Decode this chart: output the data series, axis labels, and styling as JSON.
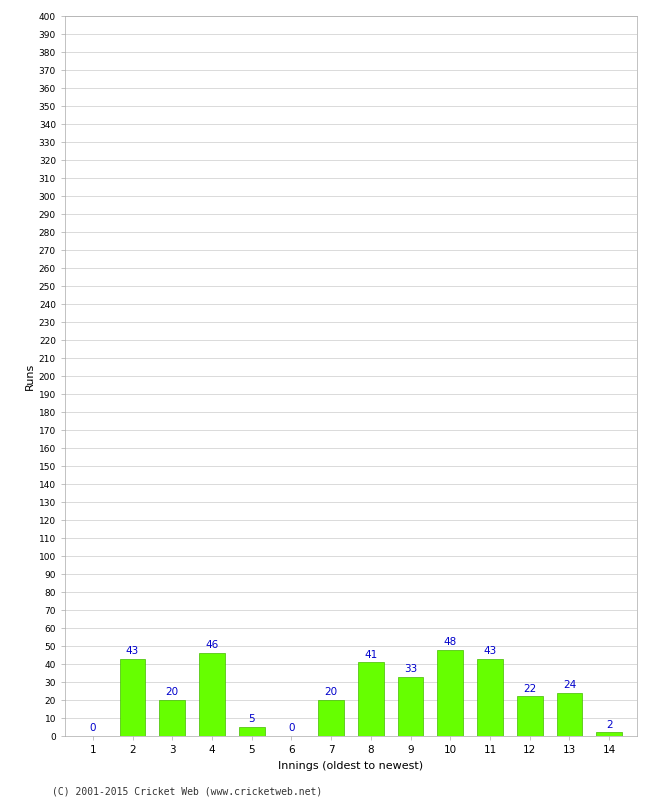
{
  "innings": [
    1,
    2,
    3,
    4,
    5,
    6,
    7,
    8,
    9,
    10,
    11,
    12,
    13,
    14
  ],
  "runs": [
    0,
    43,
    20,
    46,
    5,
    0,
    20,
    41,
    33,
    48,
    43,
    22,
    24,
    2
  ],
  "bar_color": "#66ff00",
  "bar_edge_color": "#44bb00",
  "label_color": "#0000cc",
  "xlabel": "Innings (oldest to newest)",
  "ylabel": "Runs",
  "ylim": [
    0,
    400
  ],
  "background_color": "#ffffff",
  "grid_color": "#cccccc",
  "footer": "(C) 2001-2015 Cricket Web (www.cricketweb.net)"
}
